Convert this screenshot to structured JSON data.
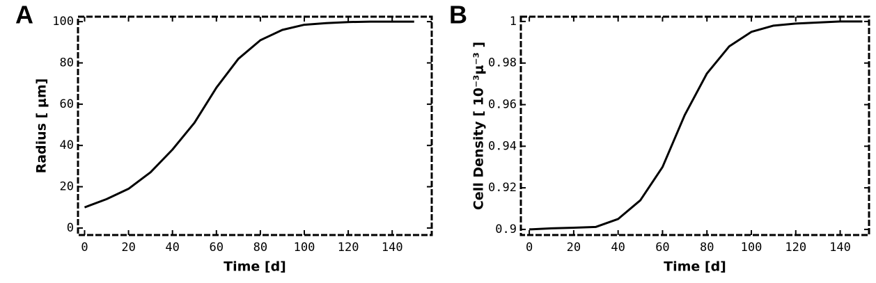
{
  "chart_data": [
    {
      "type": "line",
      "panel_label": "A",
      "x_label": "Time [d]",
      "y_label": "Radius [ μm]",
      "x": [
        0,
        10,
        20,
        30,
        40,
        50,
        60,
        70,
        80,
        90,
        100,
        110,
        120,
        130,
        140,
        150
      ],
      "series": [
        {
          "name": "Radius",
          "color": "#000000",
          "values": [
            10,
            14,
            19,
            27,
            38,
            51,
            68,
            82,
            91,
            96,
            98.5,
            99.3,
            99.8,
            100,
            100,
            100
          ]
        }
      ],
      "xlim": [
        -3,
        158
      ],
      "xticks": [
        0,
        20,
        40,
        60,
        80,
        100,
        120,
        140
      ],
      "ylim": [
        -3.4,
        102.4
      ],
      "yticks": [
        0,
        20,
        40,
        60,
        80,
        100
      ]
    },
    {
      "type": "line",
      "panel_label": "B",
      "x_label": "Time [d]",
      "y_label": "Cell Density [ 10⁻³μ⁻³ ]",
      "x": [
        0,
        10,
        20,
        30,
        40,
        50,
        60,
        70,
        80,
        90,
        100,
        110,
        120,
        130,
        140,
        150
      ],
      "series": [
        {
          "name": "Cell Density",
          "color": "#000000",
          "values": [
            0.9,
            0.9005,
            0.9008,
            0.9012,
            0.905,
            0.914,
            0.93,
            0.955,
            0.975,
            0.988,
            0.995,
            0.998,
            0.999,
            0.9995,
            1,
            1
          ]
        }
      ],
      "xlim": [
        -3.8,
        153
      ],
      "xticks": [
        0,
        20,
        40,
        60,
        80,
        100,
        120,
        140
      ],
      "ylim": [
        0.8973,
        1.0023
      ],
      "yticks": [
        0.9,
        0.92,
        0.94,
        0.96,
        0.98,
        1
      ]
    }
  ]
}
